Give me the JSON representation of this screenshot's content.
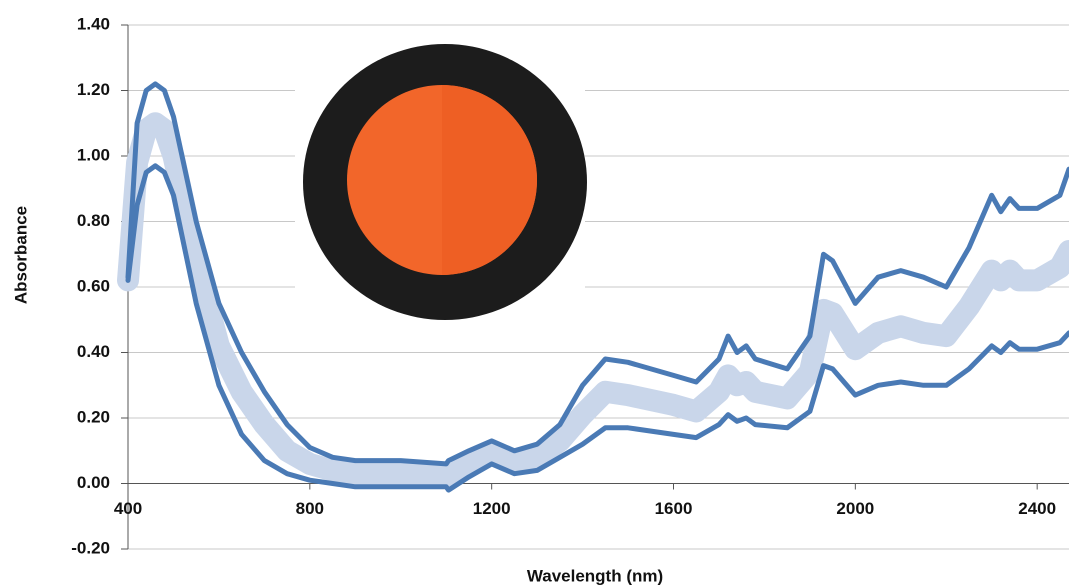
{
  "chart_data": {
    "type": "line",
    "x_label": "Wavelength (nm)",
    "y_label": "Absorbance",
    "x": [
      400,
      420,
      440,
      460,
      480,
      500,
      550,
      600,
      650,
      700,
      750,
      800,
      850,
      900,
      1000,
      1100,
      1105,
      1150,
      1200,
      1250,
      1300,
      1350,
      1400,
      1450,
      1500,
      1600,
      1650,
      1700,
      1720,
      1740,
      1760,
      1780,
      1850,
      1900,
      1930,
      1950,
      2000,
      2050,
      2100,
      2150,
      2200,
      2250,
      2300,
      2320,
      2340,
      2360,
      2400,
      2450,
      2470
    ],
    "series": [
      {
        "color": "#c9d6ea",
        "values": [
          0.62,
          0.98,
          1.08,
          1.1,
          1.08,
          1.0,
          0.68,
          0.42,
          0.28,
          0.18,
          0.1,
          0.06,
          0.04,
          0.03,
          0.03,
          0.02,
          0.02,
          0.06,
          0.1,
          0.06,
          0.08,
          0.13,
          0.21,
          0.28,
          0.27,
          0.24,
          0.22,
          0.28,
          0.33,
          0.3,
          0.31,
          0.28,
          0.26,
          0.34,
          0.53,
          0.52,
          0.41,
          0.46,
          0.48,
          0.46,
          0.45,
          0.54,
          0.65,
          0.62,
          0.65,
          0.62,
          0.62,
          0.66,
          0.71
        ]
      },
      {
        "color": "#4a7ab5",
        "values": [
          0.63,
          1.1,
          1.2,
          1.22,
          1.2,
          1.12,
          0.8,
          0.55,
          0.4,
          0.28,
          0.18,
          0.11,
          0.08,
          0.07,
          0.07,
          0.06,
          0.07,
          0.1,
          0.13,
          0.1,
          0.12,
          0.18,
          0.3,
          0.38,
          0.37,
          0.33,
          0.31,
          0.38,
          0.45,
          0.4,
          0.42,
          0.38,
          0.35,
          0.45,
          0.7,
          0.68,
          0.55,
          0.63,
          0.65,
          0.63,
          0.6,
          0.72,
          0.88,
          0.83,
          0.87,
          0.84,
          0.84,
          0.88,
          0.96
        ]
      },
      {
        "color": "#4a7ab5",
        "values": [
          0.62,
          0.85,
          0.95,
          0.97,
          0.95,
          0.88,
          0.55,
          0.3,
          0.15,
          0.07,
          0.03,
          0.01,
          0.0,
          -0.01,
          -0.01,
          -0.01,
          -0.02,
          0.02,
          0.06,
          0.03,
          0.04,
          0.08,
          0.12,
          0.17,
          0.17,
          0.15,
          0.14,
          0.18,
          0.21,
          0.19,
          0.2,
          0.18,
          0.17,
          0.22,
          0.36,
          0.35,
          0.27,
          0.3,
          0.31,
          0.3,
          0.3,
          0.35,
          0.42,
          0.4,
          0.43,
          0.41,
          0.41,
          0.43,
          0.46
        ]
      }
    ],
    "xlim": [
      400,
      2470
    ],
    "ylim": [
      -0.2,
      1.4
    ],
    "xticks": [
      400,
      800,
      1200,
      1600,
      2000,
      2400
    ],
    "yticks": [
      {
        "value": -0.2,
        "label": "-0.20"
      },
      {
        "value": 0,
        "label": "0.00"
      },
      {
        "value": 0.2,
        "label": "0.20"
      },
      {
        "value": 0.4,
        "label": "0.40"
      },
      {
        "value": 0.6,
        "label": "0.60"
      },
      {
        "value": 0.8,
        "label": "0.80"
      },
      {
        "value": 1.0,
        "label": "1.00"
      },
      {
        "value": 1.2,
        "label": "1.20"
      },
      {
        "value": 1.4,
        "label": "1.40"
      }
    ],
    "grid": true
  }
}
